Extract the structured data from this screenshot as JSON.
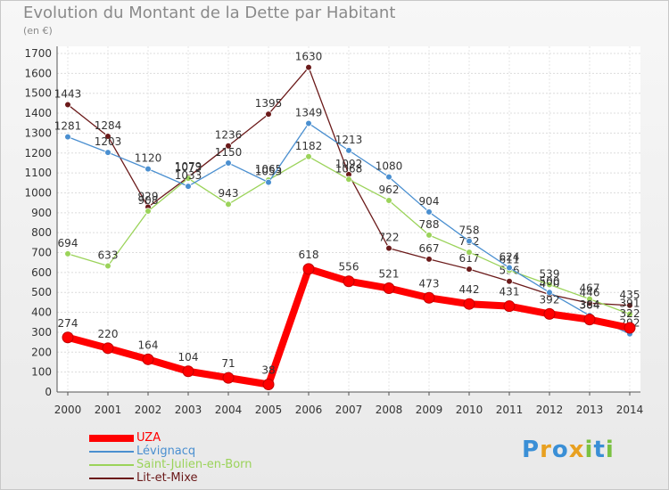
{
  "title": "Evolution du Montant de la Dette par Habitant",
  "subtitle": "(en €)",
  "logo": {
    "letters": [
      "P",
      "r",
      "o",
      "x",
      "i",
      "t",
      "i"
    ],
    "colors": [
      "#3a8fd6",
      "#e8a020",
      "#3a8fd6",
      "#e8a020",
      "#7ac142",
      "#3a8fd6",
      "#7ac142"
    ]
  },
  "chart_data": {
    "type": "line",
    "title": "Evolution du Montant de la Dette par Habitant",
    "ylabel": "(en €)",
    "xlabel": "",
    "x": [
      "2000",
      "2001",
      "2002",
      "2003",
      "2004",
      "2005",
      "2006",
      "2007",
      "2008",
      "2009",
      "2010",
      "2011",
      "2012",
      "2013",
      "2014"
    ],
    "ylim": [
      0,
      1700
    ],
    "yticks": [
      0,
      100,
      200,
      300,
      400,
      500,
      600,
      700,
      800,
      900,
      1000,
      1100,
      1200,
      1300,
      1400,
      1500,
      1600,
      1700
    ],
    "grid": true,
    "legend_position": "bottom-left",
    "series": [
      {
        "name": "Lit-et-Mixe",
        "color": "#6b1a1a",
        "values": [
          1443,
          1284,
          929,
          1079,
          1236,
          1395,
          1630,
          1092,
          722,
          667,
          617,
          556,
          490,
          446,
          435
        ]
      },
      {
        "name": "Saint-Julien-en-Born",
        "color": "#9bd35a",
        "values": [
          694,
          633,
          908,
          1073,
          943,
          1065,
          1182,
          1068,
          962,
          788,
          702,
          611,
          539,
          467,
          391
        ]
      },
      {
        "name": "Lévignacq",
        "color": "#4a8fd0",
        "values": [
          1281,
          1203,
          1120,
          1033,
          1150,
          1053,
          1349,
          1213,
          1080,
          904,
          758,
          624,
          500,
          384,
          292
        ]
      },
      {
        "name": "UZA",
        "color": "#ff0000",
        "values": [
          274,
          220,
          164,
          104,
          71,
          38,
          618,
          556,
          521,
          473,
          442,
          431,
          392,
          364,
          322
        ]
      }
    ],
    "legend_order": [
      "UZA",
      "Lévignacq",
      "Saint-Julien-en-Born",
      "Lit-et-Mixe"
    ]
  }
}
